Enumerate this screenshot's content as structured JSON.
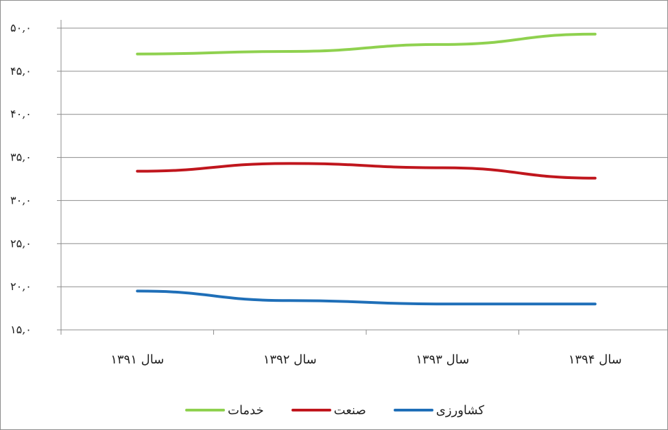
{
  "chart_data": {
    "type": "line",
    "categories": [
      "سال ۱۳۹۱",
      "سال ۱۳۹۲",
      "سال ۱۳۹۳",
      "سال ۱۳۹۴"
    ],
    "ylim": [
      15,
      50
    ],
    "y_ticks": [
      15,
      20,
      25,
      30,
      35,
      40,
      45,
      50
    ],
    "y_tick_labels": [
      "۱۵,۰",
      "۲۰,۰",
      "۲۵,۰",
      "۳۰,۰",
      "۳۵,۰",
      "۴۰,۰",
      "۴۵,۰",
      "۵۰,۰"
    ],
    "grid": true,
    "legend_position": "bottom",
    "series": [
      {
        "name": "کشاورزی",
        "color": "#1f6fb8",
        "values": [
          19.5,
          18.4,
          18.0,
          18.0
        ]
      },
      {
        "name": "صنعت",
        "color": "#c0161d",
        "values": [
          33.4,
          34.3,
          33.8,
          32.6
        ]
      },
      {
        "name": "خدمات",
        "color": "#8fd14f",
        "values": [
          47.0,
          47.3,
          48.1,
          49.3
        ]
      }
    ]
  }
}
